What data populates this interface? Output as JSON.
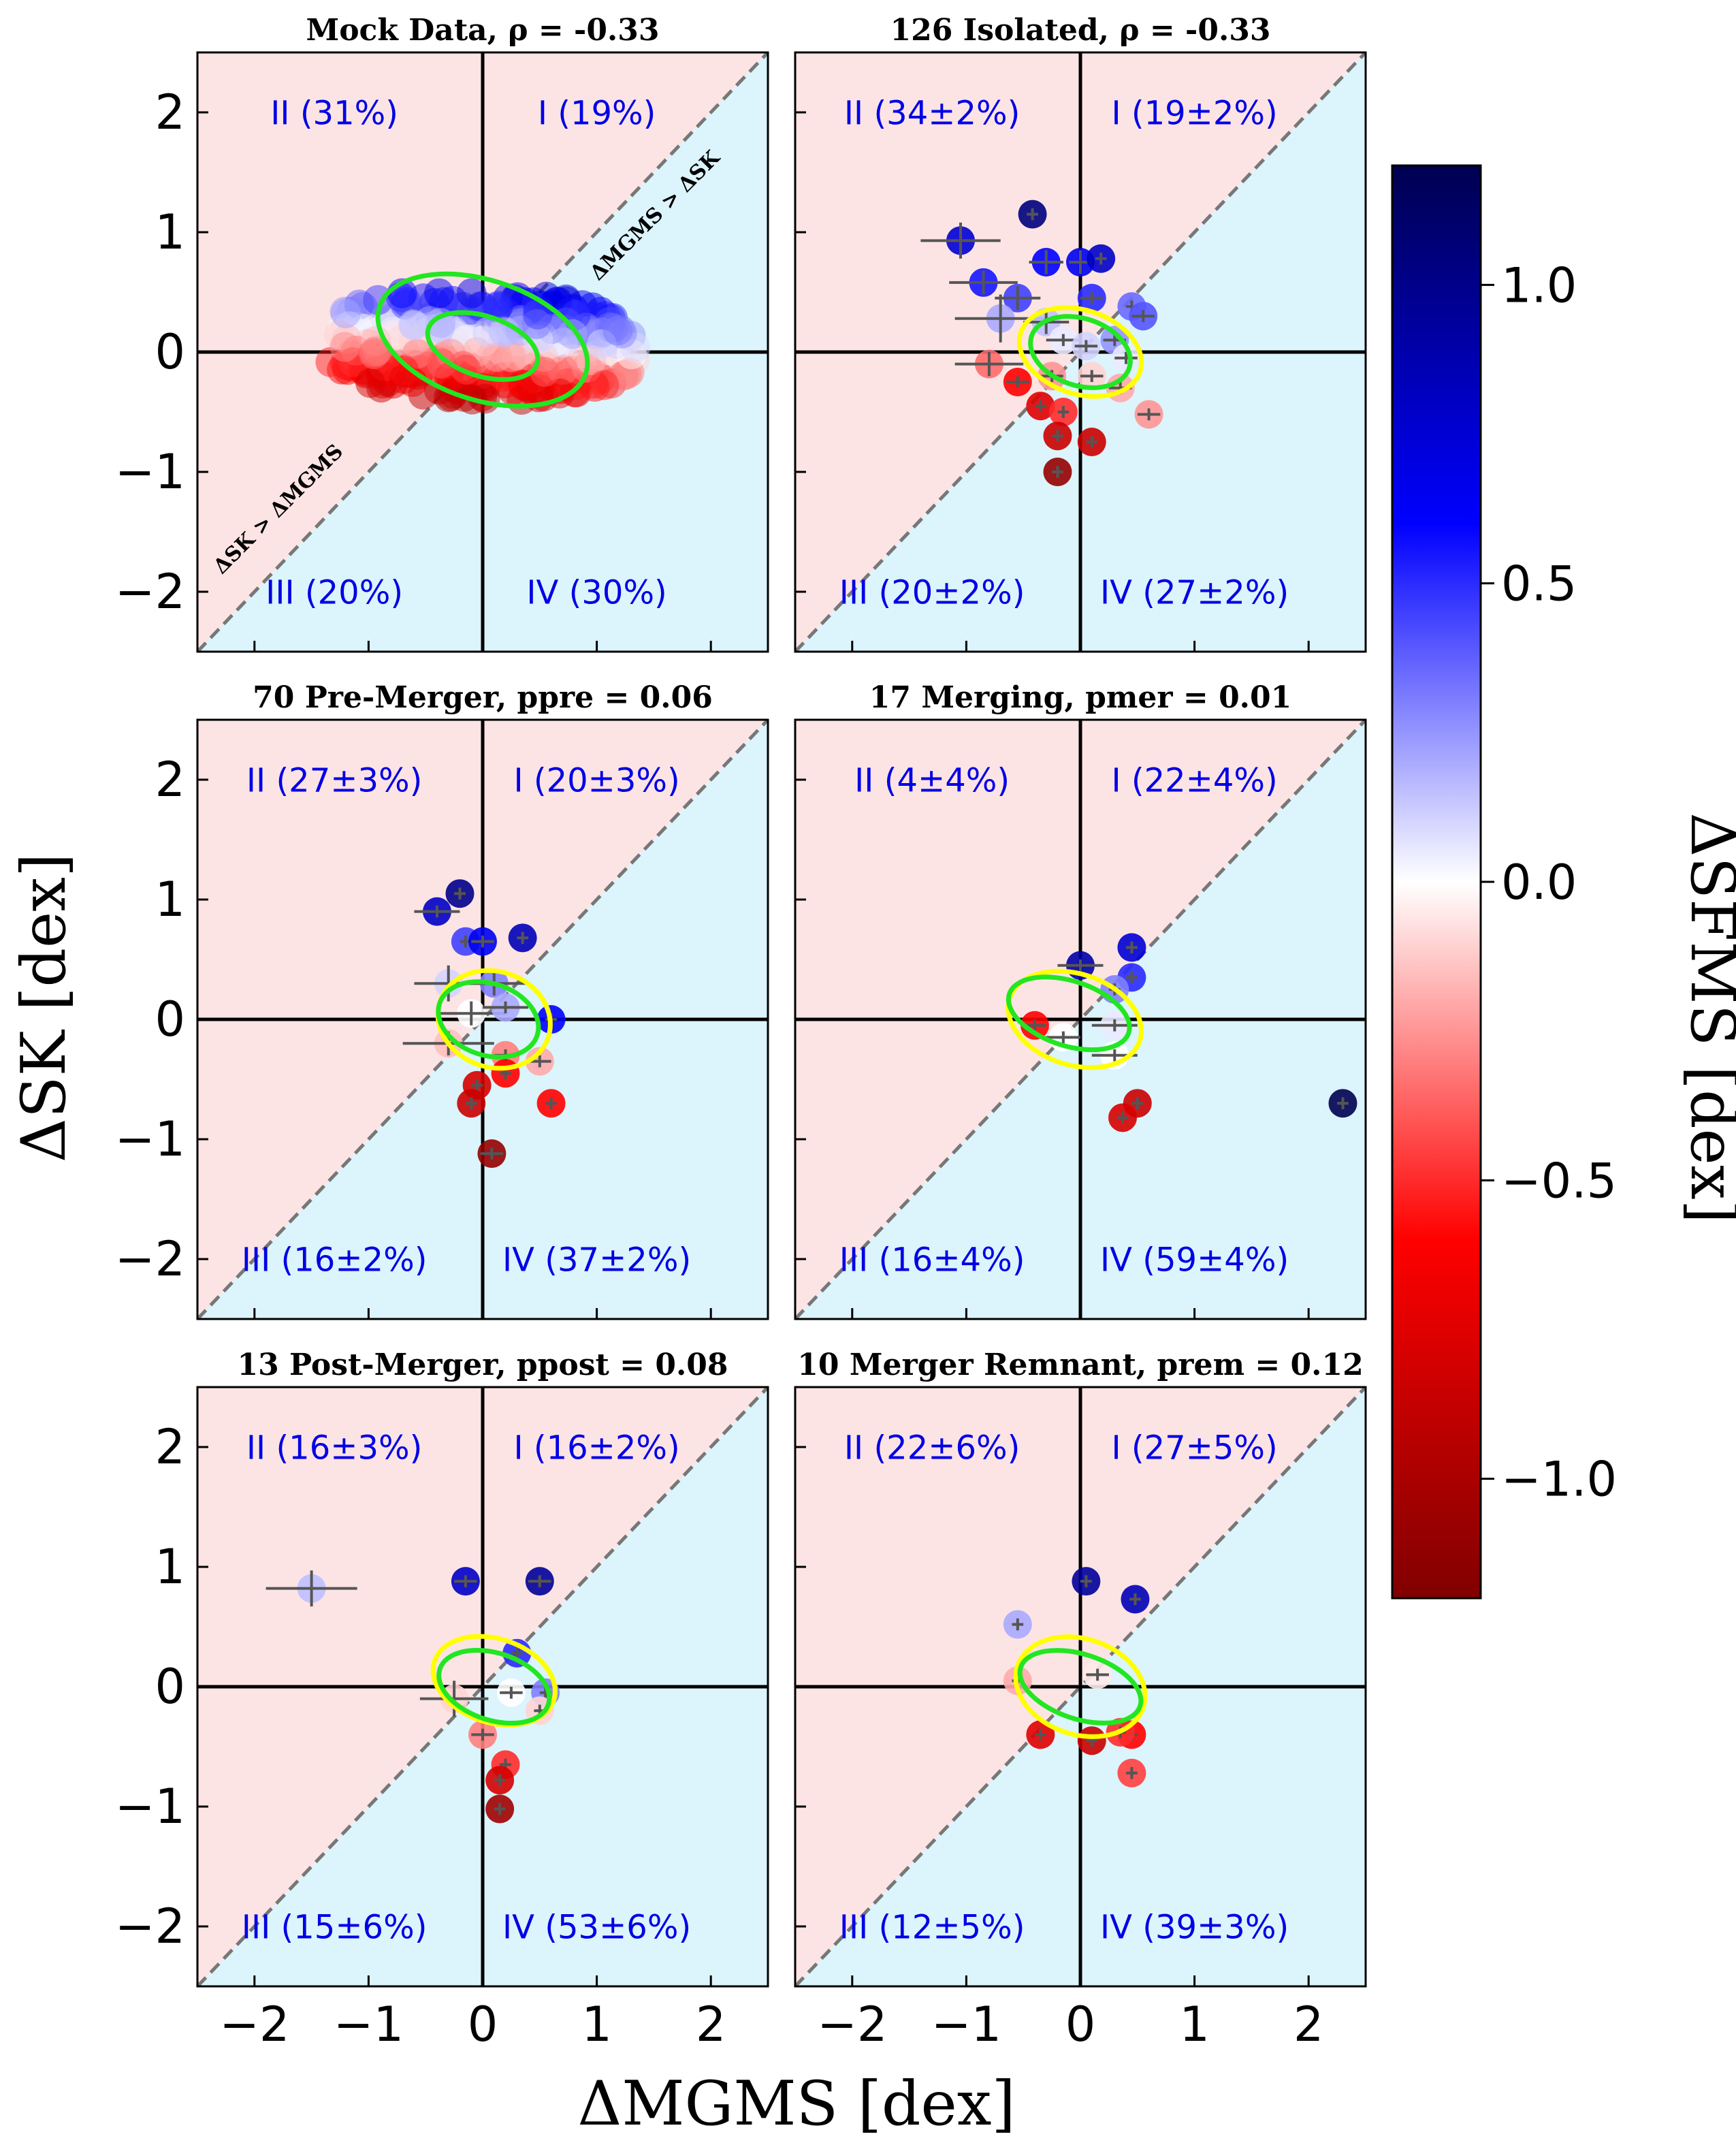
{
  "chart_data": {
    "type": "scatter",
    "xlabel": "ΔMGMS [dex]",
    "ylabel": "ΔSK [dex]",
    "colorbar_label": "ΔSFMS [dex]",
    "xlim": [
      -2.5,
      2.5
    ],
    "ylim": [
      -2.5,
      2.5
    ],
    "x_ticks": [
      "−2",
      "−1",
      "0",
      "1",
      "2"
    ],
    "y_ticks": [
      "2",
      "1",
      "0",
      "−1",
      "−2"
    ],
    "colorbar_range": [
      -1.2,
      1.2
    ],
    "colorbar_ticks": [
      "1.0",
      "0.5",
      "0.0",
      "−0.5",
      "−1.0"
    ],
    "colors": {
      "upper_region": "#fde4e4",
      "lower_region": "#dcf4fb",
      "quadrant_text": "#0000e6",
      "contour_green": "#22e622",
      "contour_yellow": "#ffff00"
    },
    "diagonal_labels": {
      "upper": "ΔMGMS > ΔSK",
      "lower": "ΔSK > ΔMGMS"
    },
    "panels": [
      {
        "title": "Mock Data, ρ = -0.33",
        "quadrants": {
          "I": "I (19%)",
          "II": "II (31%)",
          "III": "III (20%)",
          "IV": "IV (30%)"
        },
        "cloud": true,
        "contours": [
          {
            "color": "green",
            "cx": 0.0,
            "cy": 0.1,
            "rx": 0.95,
            "ry": 0.5
          },
          {
            "color": "green",
            "cx": 0.0,
            "cy": 0.05,
            "rx": 0.5,
            "ry": 0.25
          }
        ],
        "points": []
      },
      {
        "title": "126 Isolated, ρ = -0.33",
        "quadrants": {
          "I": "I (19±2%)",
          "II": "II (34±2%)",
          "III": "III (20±2%)",
          "IV": "IV (27±2%)"
        },
        "cloud": false,
        "contours": [
          {
            "color": "yellow",
            "cx": 0.0,
            "cy": 0.0,
            "rx": 0.55,
            "ry": 0.35
          },
          {
            "color": "green",
            "cx": 0.0,
            "cy": 0.0,
            "rx": 0.45,
            "ry": 0.28
          }
        ],
        "points": [
          {
            "x": -1.05,
            "y": 0.93,
            "c": 0.75,
            "ex": 0.35,
            "ey": 0.15
          },
          {
            "x": -0.42,
            "y": 1.15,
            "c": 1.05,
            "ex": 0.05,
            "ey": 0.05
          },
          {
            "x": -0.85,
            "y": 0.58,
            "c": 0.55,
            "ex": 0.3,
            "ey": 0.1
          },
          {
            "x": -0.3,
            "y": 0.75,
            "c": 0.6,
            "ex": 0.15,
            "ey": 0.1
          },
          {
            "x": 0.0,
            "y": 0.75,
            "c": 0.65,
            "ex": 0.1,
            "ey": 0.1
          },
          {
            "x": 0.18,
            "y": 0.78,
            "c": 0.8,
            "ex": 0.05,
            "ey": 0.05
          },
          {
            "x": -0.55,
            "y": 0.45,
            "c": 0.45,
            "ex": 0.2,
            "ey": 0.1
          },
          {
            "x": 0.1,
            "y": 0.45,
            "c": 0.5,
            "ex": 0.1,
            "ey": 0.05
          },
          {
            "x": 0.45,
            "y": 0.38,
            "c": 0.35,
            "ex": 0.05,
            "ey": 0.05
          },
          {
            "x": 0.55,
            "y": 0.3,
            "c": 0.4,
            "ex": 0.1,
            "ey": 0.05
          },
          {
            "x": -0.7,
            "y": 0.28,
            "c": 0.2,
            "ex": 0.4,
            "ey": 0.2
          },
          {
            "x": -0.3,
            "y": 0.25,
            "c": 0.15,
            "ex": 0.2,
            "ey": 0.1
          },
          {
            "x": -0.15,
            "y": 0.1,
            "c": 0.05,
            "ex": 0.15,
            "ey": 0.05
          },
          {
            "x": 0.05,
            "y": 0.05,
            "c": 0.1,
            "ex": 0.1,
            "ey": 0.05
          },
          {
            "x": 0.3,
            "y": 0.1,
            "c": 0.25,
            "ex": 0.1,
            "ey": 0.05
          },
          {
            "x": 0.4,
            "y": -0.05,
            "c": 0.05,
            "ex": 0.1,
            "ey": 0.05
          },
          {
            "x": -0.8,
            "y": -0.1,
            "c": -0.35,
            "ex": 0.3,
            "ey": 0.1
          },
          {
            "x": -0.55,
            "y": -0.25,
            "c": -0.6,
            "ex": 0.1,
            "ey": 0.05
          },
          {
            "x": -0.25,
            "y": -0.2,
            "c": -0.25,
            "ex": 0.1,
            "ey": 0.05
          },
          {
            "x": 0.1,
            "y": -0.2,
            "c": -0.1,
            "ex": 0.1,
            "ey": 0.05
          },
          {
            "x": 0.35,
            "y": -0.3,
            "c": -0.2,
            "ex": 0.1,
            "ey": 0.05
          },
          {
            "x": 0.6,
            "y": -0.52,
            "c": -0.25,
            "ex": 0.1,
            "ey": 0.05
          },
          {
            "x": -0.35,
            "y": -0.45,
            "c": -0.75,
            "ex": 0.05,
            "ey": 0.05
          },
          {
            "x": -0.15,
            "y": -0.5,
            "c": -0.5,
            "ex": 0.05,
            "ey": 0.05
          },
          {
            "x": -0.2,
            "y": -0.7,
            "c": -0.85,
            "ex": 0.05,
            "ey": 0.05
          },
          {
            "x": 0.1,
            "y": -0.75,
            "c": -0.85,
            "ex": 0.05,
            "ey": 0.05
          },
          {
            "x": -0.2,
            "y": -1.0,
            "c": -1.1,
            "ex": 0.05,
            "ey": 0.05
          }
        ]
      },
      {
        "title": "70 Pre-Merger, ppre = 0.06",
        "quadrants": {
          "I": "I (20±3%)",
          "II": "II (27±3%)",
          "III": "III (16±2%)",
          "IV": "IV (37±2%)"
        },
        "cloud": false,
        "contours": [
          {
            "color": "yellow",
            "cx": 0.1,
            "cy": 0.0,
            "rx": 0.5,
            "ry": 0.4
          },
          {
            "color": "green",
            "cx": 0.05,
            "cy": 0.0,
            "rx": 0.45,
            "ry": 0.3
          }
        ],
        "points": [
          {
            "x": -0.4,
            "y": 0.9,
            "c": 0.8,
            "ex": 0.2,
            "ey": 0.05
          },
          {
            "x": -0.2,
            "y": 1.05,
            "c": 1.0,
            "ex": 0.05,
            "ey": 0.05
          },
          {
            "x": -0.15,
            "y": 0.65,
            "c": 0.45,
            "ex": 0.05,
            "ey": 0.05
          },
          {
            "x": 0.0,
            "y": 0.65,
            "c": 0.65,
            "ex": 0.1,
            "ey": 0.05
          },
          {
            "x": 0.35,
            "y": 0.68,
            "c": 0.85,
            "ex": 0.05,
            "ey": 0.05
          },
          {
            "x": -0.3,
            "y": 0.3,
            "c": 0.1,
            "ex": 0.3,
            "ey": 0.15
          },
          {
            "x": 0.1,
            "y": 0.3,
            "c": 0.3,
            "ex": 0.3,
            "ey": 0.1
          },
          {
            "x": -0.1,
            "y": 0.05,
            "c": 0.0,
            "ex": 0.3,
            "ey": 0.1
          },
          {
            "x": 0.2,
            "y": 0.1,
            "c": 0.2,
            "ex": 0.2,
            "ey": 0.05
          },
          {
            "x": 0.6,
            "y": 0.0,
            "c": 0.6,
            "ex": 0.05,
            "ey": 0.05
          },
          {
            "x": -0.3,
            "y": -0.2,
            "c": -0.15,
            "ex": 0.4,
            "ey": 0.1
          },
          {
            "x": 0.2,
            "y": -0.3,
            "c": -0.3,
            "ex": 0.1,
            "ey": 0.05
          },
          {
            "x": 0.5,
            "y": -0.35,
            "c": -0.2,
            "ex": 0.1,
            "ey": 0.05
          },
          {
            "x": -0.05,
            "y": -0.55,
            "c": -0.8,
            "ex": 0.05,
            "ey": 0.05
          },
          {
            "x": 0.2,
            "y": -0.45,
            "c": -0.6,
            "ex": 0.05,
            "ey": 0.05
          },
          {
            "x": -0.1,
            "y": -0.7,
            "c": -0.85,
            "ex": 0.05,
            "ey": 0.05
          },
          {
            "x": 0.6,
            "y": -0.7,
            "c": -0.6,
            "ex": 0.05,
            "ey": 0.05
          },
          {
            "x": 0.08,
            "y": -1.12,
            "c": -1.1,
            "ex": 0.1,
            "ey": 0.05
          }
        ]
      },
      {
        "title": "17 Merging, pmer = 0.01",
        "quadrants": {
          "I": "I (22±4%)",
          "II": "II (4±4%)",
          "III": "III (16±4%)",
          "IV": "IV (59±4%)"
        },
        "cloud": false,
        "contours": [
          {
            "color": "yellow",
            "cx": -0.05,
            "cy": 0.0,
            "rx": 0.6,
            "ry": 0.38
          },
          {
            "color": "green",
            "cx": -0.1,
            "cy": 0.05,
            "rx": 0.55,
            "ry": 0.27
          }
        ],
        "points": [
          {
            "x": 0.0,
            "y": 0.45,
            "c": 0.9,
            "ex": 0.2,
            "ey": 0.05
          },
          {
            "x": 0.45,
            "y": 0.6,
            "c": 0.75,
            "ex": 0.05,
            "ey": 0.05
          },
          {
            "x": 0.45,
            "y": 0.35,
            "c": 0.5,
            "ex": 0.05,
            "ey": 0.05
          },
          {
            "x": 0.3,
            "y": 0.25,
            "c": 0.3,
            "ex": 0.05,
            "ey": 0.05
          },
          {
            "x": -0.4,
            "y": -0.05,
            "c": -0.6,
            "ex": 0.1,
            "ey": 0.05
          },
          {
            "x": 0.3,
            "y": -0.05,
            "c": 0.05,
            "ex": 0.2,
            "ey": 0.05
          },
          {
            "x": -0.15,
            "y": -0.15,
            "c": 0.0,
            "ex": 0.15,
            "ey": 0.05
          },
          {
            "x": 0.3,
            "y": -0.3,
            "c": 0.0,
            "ex": 0.2,
            "ey": 0.05
          },
          {
            "x": 0.5,
            "y": -0.7,
            "c": -0.85,
            "ex": 0.05,
            "ey": 0.05
          },
          {
            "x": 0.37,
            "y": -0.82,
            "c": -0.8,
            "ex": 0.05,
            "ey": 0.05
          },
          {
            "x": 2.3,
            "y": -0.7,
            "c": 1.2,
            "ex": 0.05,
            "ey": 0.05
          }
        ]
      },
      {
        "title": "13 Post-Merger, ppost = 0.08",
        "quadrants": {
          "I": "I (16±2%)",
          "II": "II (16±3%)",
          "III": "III (15±6%)",
          "IV": "IV (53±6%)"
        },
        "cloud": false,
        "contours": [
          {
            "color": "yellow",
            "cx": 0.1,
            "cy": 0.05,
            "rx": 0.55,
            "ry": 0.35
          },
          {
            "color": "green",
            "cx": 0.1,
            "cy": 0.0,
            "rx": 0.5,
            "ry": 0.28
          }
        ],
        "points": [
          {
            "x": -1.5,
            "y": 0.82,
            "c": 0.15,
            "ex": 0.4,
            "ey": 0.15
          },
          {
            "x": -0.15,
            "y": 0.88,
            "c": 0.8,
            "ex": 0.1,
            "ey": 0.05
          },
          {
            "x": 0.5,
            "y": 0.88,
            "c": 0.95,
            "ex": 0.1,
            "ey": 0.05
          },
          {
            "x": 0.3,
            "y": 0.28,
            "c": 0.5,
            "ex": 0.05,
            "ey": 0.05
          },
          {
            "x": -0.25,
            "y": -0.1,
            "c": -0.1,
            "ex": 0.3,
            "ey": 0.15
          },
          {
            "x": 0.25,
            "y": -0.05,
            "c": 0.0,
            "ex": 0.1,
            "ey": 0.05
          },
          {
            "x": 0.55,
            "y": -0.05,
            "c": 0.3,
            "ex": 0.05,
            "ey": 0.05
          },
          {
            "x": 0.0,
            "y": -0.4,
            "c": -0.3,
            "ex": 0.1,
            "ey": 0.05
          },
          {
            "x": 0.5,
            "y": -0.2,
            "c": -0.1,
            "ex": 0.05,
            "ey": 0.05
          },
          {
            "x": 0.2,
            "y": -0.65,
            "c": -0.5,
            "ex": 0.05,
            "ey": 0.05
          },
          {
            "x": 0.15,
            "y": -0.78,
            "c": -0.8,
            "ex": 0.05,
            "ey": 0.05
          },
          {
            "x": 0.15,
            "y": -1.02,
            "c": -1.05,
            "ex": 0.05,
            "ey": 0.05
          }
        ]
      },
      {
        "title": "10 Merger Remnant, prem = 0.12",
        "quadrants": {
          "I": "I (27±5%)",
          "II": "II (22±6%)",
          "III": "III (12±5%)",
          "IV": "IV (39±3%)"
        },
        "cloud": false,
        "contours": [
          {
            "color": "yellow",
            "cx": 0.0,
            "cy": 0.0,
            "rx": 0.58,
            "ry": 0.4
          },
          {
            "color": "green",
            "cx": 0.0,
            "cy": 0.0,
            "rx": 0.55,
            "ry": 0.27
          }
        ],
        "points": [
          {
            "x": 0.05,
            "y": 0.88,
            "c": 0.95,
            "ex": 0.05,
            "ey": 0.05
          },
          {
            "x": 0.48,
            "y": 0.73,
            "c": 0.85,
            "ex": 0.05,
            "ey": 0.05
          },
          {
            "x": -0.55,
            "y": 0.52,
            "c": 0.2,
            "ex": 0.05,
            "ey": 0.05
          },
          {
            "x": -0.55,
            "y": 0.05,
            "c": -0.2,
            "ex": 0.05,
            "ey": 0.05
          },
          {
            "x": 0.15,
            "y": 0.1,
            "c": -0.05,
            "ex": 0.1,
            "ey": 0.05
          },
          {
            "x": -0.35,
            "y": -0.4,
            "c": -0.75,
            "ex": 0.05,
            "ey": 0.05
          },
          {
            "x": 0.1,
            "y": -0.45,
            "c": -0.85,
            "ex": 0.05,
            "ey": 0.05
          },
          {
            "x": 0.45,
            "y": -0.4,
            "c": -0.6,
            "ex": 0.05,
            "ey": 0.05
          },
          {
            "x": 0.45,
            "y": -0.72,
            "c": -0.45,
            "ex": 0.05,
            "ey": 0.05
          },
          {
            "x": 0.35,
            "y": -0.38,
            "c": -0.5,
            "ex": 0.05,
            "ey": 0.05
          }
        ]
      }
    ]
  }
}
